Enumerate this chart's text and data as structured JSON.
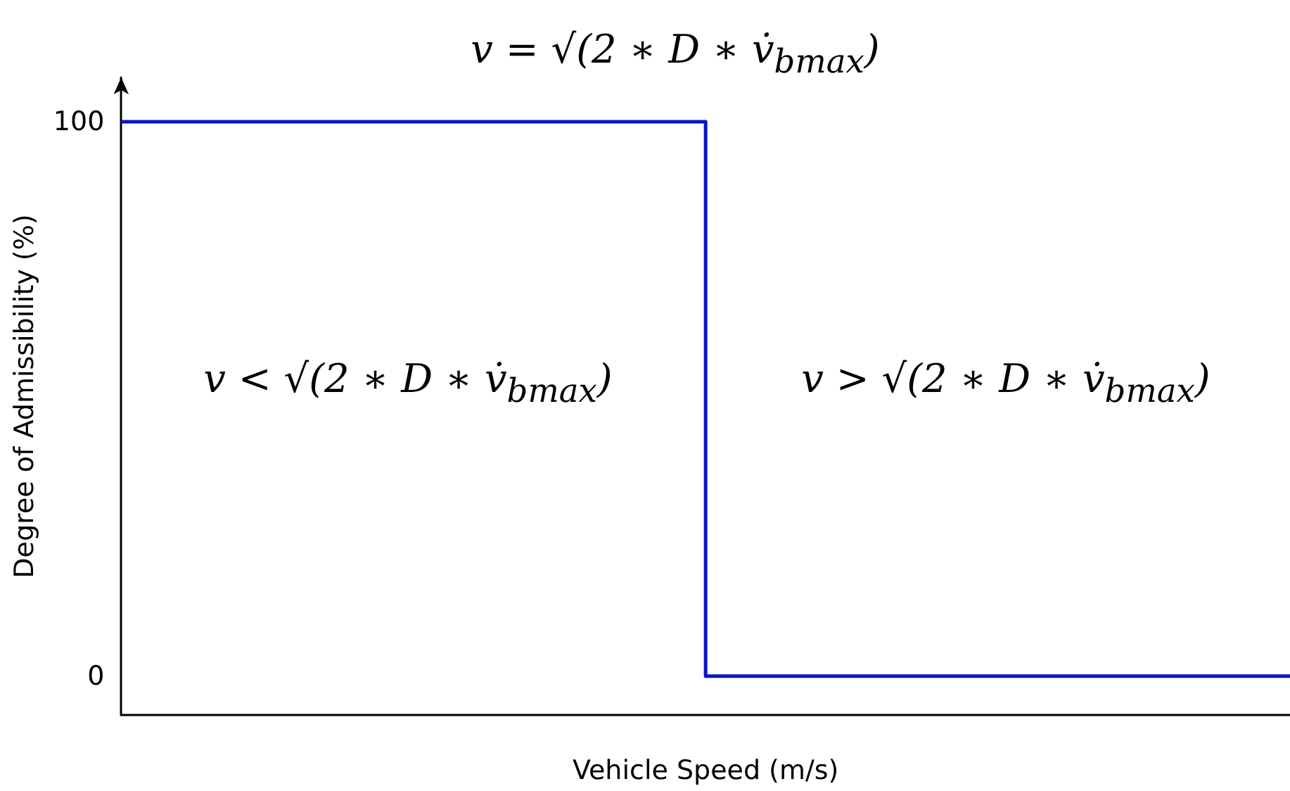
{
  "chart_data": {
    "type": "step",
    "xlabel": "Vehicle Speed (m/s)",
    "ylabel": "Degree of Admissibility (%)",
    "categories": [
      null,
      null,
      null,
      null,
      null,
      null,
      null,
      null
    ],
    "series": [
      {
        "color": "#0a14c8",
        "values": [
          100,
          100,
          100,
          100,
          0,
          0,
          0,
          0
        ]
      }
    ],
    "ylim": [
      -7,
      108
    ],
    "yticks": [
      0,
      100
    ],
    "grid": false,
    "tick_labels": "y",
    "marker": "none",
    "line_style": "solid",
    "annotations": [
      "v = √(2 ∗ D ∗ v̇$_{bmax}$)",
      "v < √(2 ∗ D ∗ v̇$_{bmax}$)",
      "v > √(2 ∗ D ∗ v̇$_{bmax}$)"
    ]
  }
}
